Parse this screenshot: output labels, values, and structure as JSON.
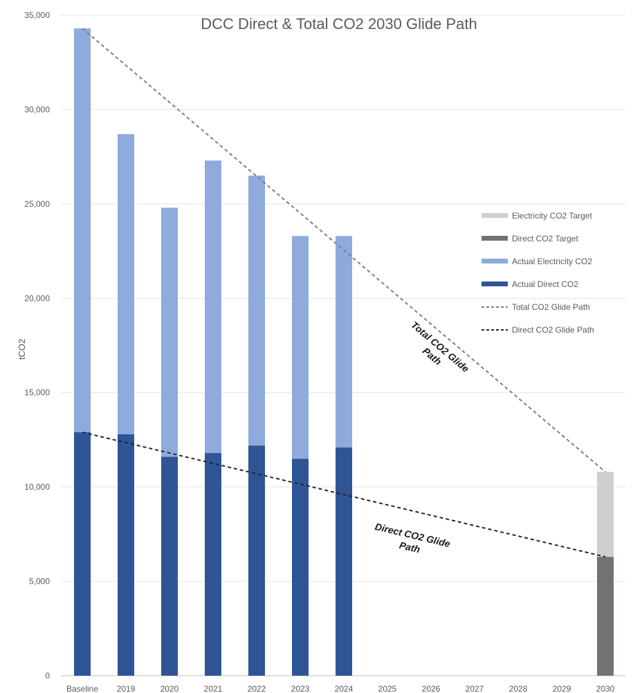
{
  "chart_data": {
    "type": "bar",
    "title": "DCC Direct & Total CO2 2030 Glide Path",
    "ylabel": "tCO2",
    "xlabel": "",
    "ylim": [
      0,
      35000
    ],
    "yticks": [
      0,
      5000,
      10000,
      15000,
      20000,
      25000,
      30000,
      35000
    ],
    "ytick_labels": [
      "0",
      "5,000",
      "10,000",
      "15,000",
      "20,000",
      "25,000",
      "30,000",
      "35,000"
    ],
    "categories": [
      "Baseline",
      "2019",
      "2020",
      "2021",
      "2022",
      "2023",
      "2024",
      "2025",
      "2026",
      "2027",
      "2028",
      "2029",
      "2030"
    ],
    "grid": true,
    "stacked": true,
    "legend_position": "right",
    "series": [
      {
        "name": "Actual Direct CO2",
        "kind": "bar",
        "color": "#2f5597",
        "values": [
          12900,
          12800,
          11600,
          11800,
          12200,
          11500,
          12100,
          null,
          null,
          null,
          null,
          null,
          null
        ]
      },
      {
        "name": "Actual Electricity CO2",
        "kind": "bar",
        "color": "#8faadc",
        "values": [
          21400,
          15900,
          13200,
          15500,
          14300,
          11800,
          11200,
          null,
          null,
          null,
          null,
          null,
          null
        ]
      },
      {
        "name": "Direct CO2 Target",
        "kind": "bar",
        "color": "#767171",
        "values": [
          null,
          null,
          null,
          null,
          null,
          null,
          null,
          null,
          null,
          null,
          null,
          null,
          6300
        ]
      },
      {
        "name": "Electricity CO2 Target",
        "kind": "bar",
        "color": "#d0cece",
        "values": [
          null,
          null,
          null,
          null,
          null,
          null,
          null,
          null,
          null,
          null,
          null,
          null,
          4500
        ]
      },
      {
        "name": "Total CO2 Glide Path",
        "kind": "line",
        "dash": true,
        "color": "#7f7f7f",
        "points": [
          {
            "x": "Baseline",
            "y": 34300
          },
          {
            "x": "2030",
            "y": 10800
          }
        ]
      },
      {
        "name": "Direct CO2 Glide Path",
        "kind": "line",
        "dash": true,
        "color": "#262626",
        "points": [
          {
            "x": "Baseline",
            "y": 12900
          },
          {
            "x": "2030",
            "y": 6300
          }
        ]
      }
    ],
    "legend_order": [
      "Electricity CO2 Target",
      "Direct CO2 Target",
      "Actual Electricity CO2",
      "Actual Direct CO2",
      "Total CO2 Glide Path",
      "Direct CO2 Glide Path"
    ],
    "annotations": [
      {
        "text_lines": [
          "Total CO2 Glide",
          "Path"
        ],
        "series": "Total CO2 Glide Path"
      },
      {
        "text_lines": [
          "Direct CO2 Glide",
          "Path"
        ],
        "series": "Direct CO2 Glide Path"
      }
    ]
  }
}
